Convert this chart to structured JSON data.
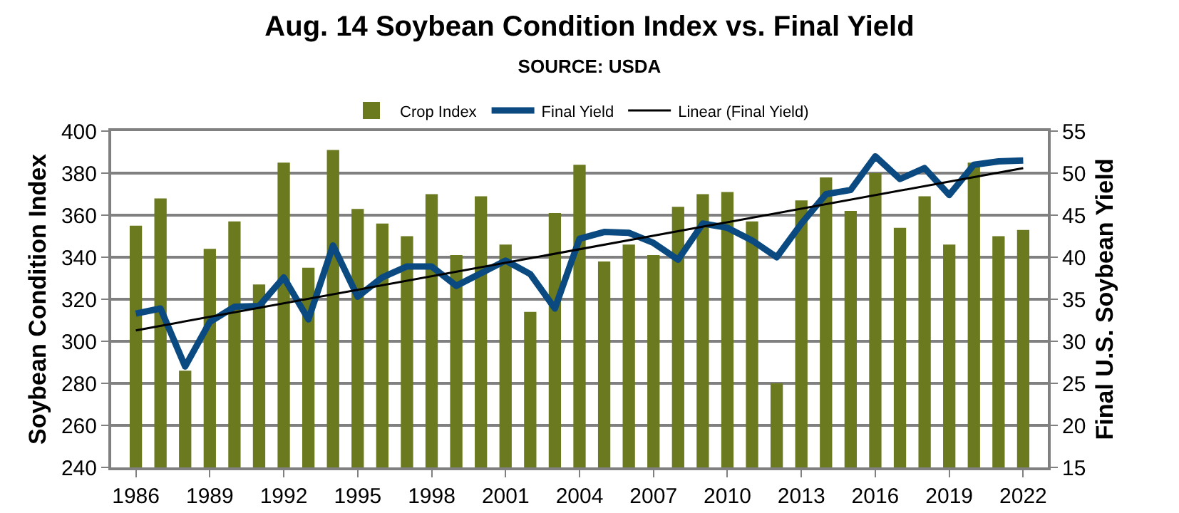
{
  "chart_data": {
    "type": "bar",
    "title": "Aug. 14 Soybean Condition Index vs. Final Yield",
    "subtitle": "SOURCE: USDA",
    "ylabel": "Soybean Condition Index",
    "y2label": "Final U.S. Soybean Yield",
    "x": [
      1986,
      1987,
      1988,
      1989,
      1990,
      1991,
      1992,
      1993,
      1994,
      1995,
      1996,
      1997,
      1998,
      1999,
      2000,
      2001,
      2002,
      2003,
      2004,
      2005,
      2006,
      2007,
      2008,
      2009,
      2010,
      2011,
      2012,
      2013,
      2014,
      2015,
      2016,
      2017,
      2018,
      2019,
      2020,
      2021,
      2022
    ],
    "series": [
      {
        "name": "Crop Index",
        "color": "#6b7a1e",
        "values": [
          355,
          368,
          286,
          344,
          357,
          327,
          385,
          335,
          391,
          363,
          356,
          350,
          370,
          341,
          369,
          346,
          314,
          361,
          384,
          338,
          346,
          341,
          364,
          370,
          371,
          357,
          280,
          367,
          378,
          362,
          380,
          354,
          369,
          346,
          385,
          350,
          353
        ]
      },
      {
        "name": "Final Yield",
        "type": "line",
        "axis": "y2",
        "color": "#0b4a80",
        "values": [
          33.3,
          33.9,
          27.0,
          32.3,
          34.1,
          34.2,
          37.6,
          32.6,
          41.4,
          35.3,
          37.6,
          38.9,
          38.9,
          36.6,
          38.1,
          39.6,
          38.0,
          33.9,
          42.2,
          43.0,
          42.9,
          41.7,
          39.7,
          44.0,
          43.5,
          42.0,
          40.0,
          44.0,
          47.5,
          48.0,
          52.0,
          49.3,
          50.6,
          47.4,
          51.0,
          51.4,
          51.5
        ]
      },
      {
        "name": "Linear (Final Yield)",
        "type": "line",
        "axis": "y2",
        "color": "#000000",
        "x": [
          1986,
          2022
        ],
        "values": [
          31.3,
          50.6
        ]
      }
    ],
    "xlim": [
      1985,
      2023
    ],
    "xticks": [
      1986,
      1989,
      1992,
      1995,
      1998,
      2001,
      2004,
      2007,
      2010,
      2013,
      2016,
      2019,
      2022
    ],
    "ylim": [
      240,
      400
    ],
    "yticks": [
      240,
      260,
      280,
      300,
      320,
      340,
      360,
      380,
      400
    ],
    "y2lim": [
      15,
      55
    ],
    "y2ticks": [
      15,
      20,
      25,
      30,
      35,
      40,
      45,
      50,
      55
    ],
    "grid": "y",
    "legend": "top",
    "marker": "none",
    "line_style": "solid"
  }
}
